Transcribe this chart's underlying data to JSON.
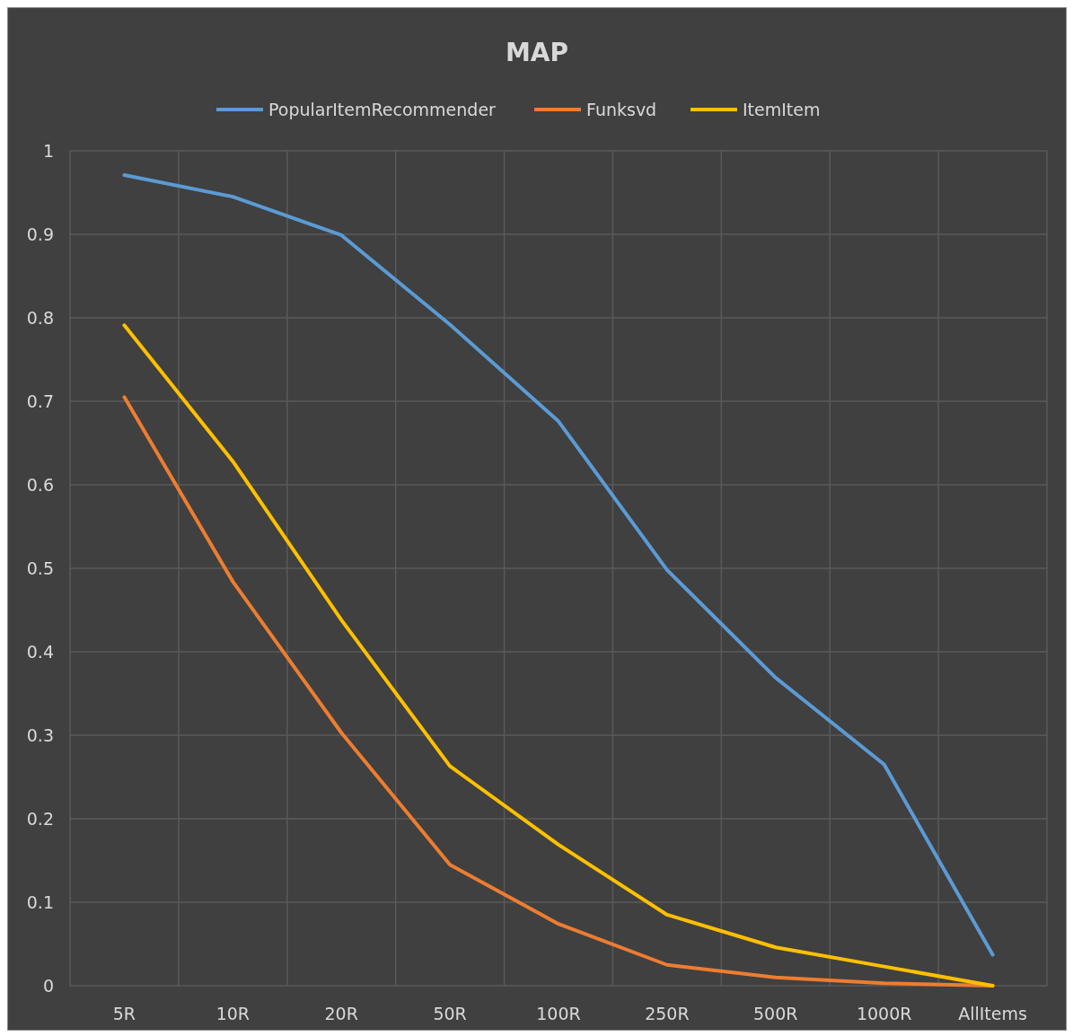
{
  "chart_data": {
    "type": "line",
    "title": "MAP",
    "categories": [
      "5R",
      "10R",
      "20R",
      "50R",
      "100R",
      "250R",
      "500R",
      "1000R",
      "AllItems"
    ],
    "series": [
      {
        "name": "PopularItemRecommender",
        "color": "#5b9bd5",
        "values": [
          0.971,
          0.945,
          0.899,
          0.792,
          0.676,
          0.498,
          0.369,
          0.265,
          0.037
        ]
      },
      {
        "name": "Funksvd",
        "color": "#ed7d31",
        "values": [
          0.705,
          0.484,
          0.303,
          0.145,
          0.074,
          0.025,
          0.01,
          0.003,
          0
        ]
      },
      {
        "name": "ItemItem",
        "color": "#ffc000",
        "values": [
          0.791,
          0.628,
          0.438,
          0.263,
          0.169,
          0.085,
          0.046,
          0.023,
          0
        ]
      }
    ],
    "ylim": [
      0,
      1
    ],
    "yticks": [
      0,
      0.1,
      0.2,
      0.3,
      0.4,
      0.5,
      0.6,
      0.7,
      0.8,
      0.9,
      1
    ],
    "grid": true,
    "legend": "top",
    "marker": "none",
    "line_style": "solid"
  }
}
